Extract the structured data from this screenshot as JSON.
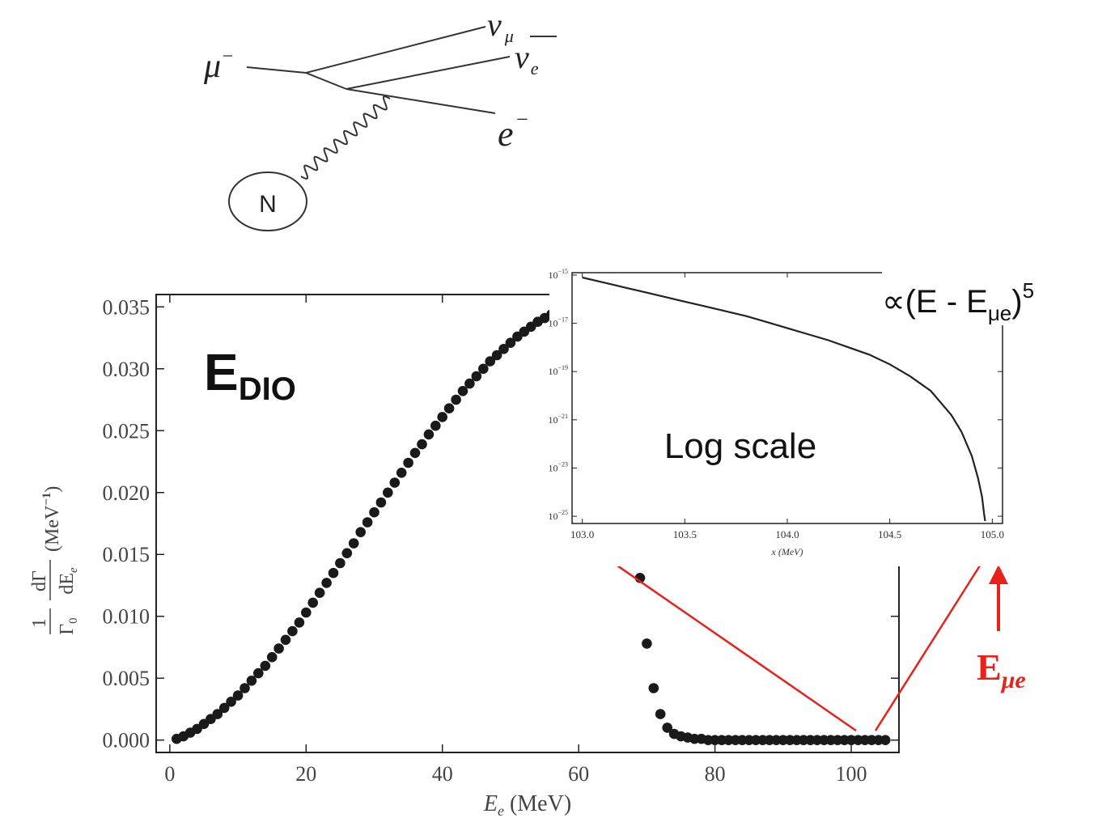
{
  "feynman": {
    "mu": "μ",
    "mu_sup": "−",
    "nu_mu": "ν",
    "nu_mu_sub": "μ",
    "nu_e": "ν",
    "nu_e_sub": "e",
    "e": "e",
    "e_sup": "−",
    "nucleus": "N"
  },
  "annotations": {
    "edio_main": "E",
    "edio_sub": "DIO",
    "log_scale": "Log scale",
    "prop_symbol": "∝",
    "prop_open": "(E - E",
    "prop_sub": "μe",
    "prop_close": ")",
    "prop_sup": "5",
    "emue_main": "E",
    "emue_sub": "μe",
    "accent_color": "#e8221a"
  },
  "chart_data": [
    {
      "type": "scatter",
      "xlabel_main": "E",
      "xlabel_sub": "e",
      "xlabel_unit": " (MeV)",
      "ylabel_fraction_num": "1",
      "ylabel_fraction_den": "Γ",
      "ylabel_fraction_den_sub": "0",
      "ylabel_d_num": "dΓ",
      "ylabel_d_den": "dE",
      "ylabel_d_den_sub": "e",
      "ylabel_unit": "(MeV",
      "ylabel_unit_sup": "−1",
      "ylabel_unit_close": ")",
      "xlim": [
        -2,
        107
      ],
      "ylim": [
        -0.001,
        0.036
      ],
      "xticks": [
        "0",
        "20",
        "40",
        "60",
        "80",
        "100"
      ],
      "xtick_values": [
        0,
        20,
        40,
        60,
        80,
        100
      ],
      "yticks": [
        "0.000",
        "0.005",
        "0.010",
        "0.015",
        "0.020",
        "0.025",
        "0.030",
        "0.035"
      ],
      "ytick_values": [
        0,
        0.005,
        0.01,
        0.015,
        0.02,
        0.025,
        0.03,
        0.035
      ],
      "marker_color": "#1a1a1a",
      "x": [
        1,
        2,
        3,
        4,
        5,
        6,
        7,
        8,
        9,
        10,
        11,
        12,
        13,
        14,
        15,
        16,
        17,
        18,
        19,
        20,
        21,
        22,
        23,
        24,
        25,
        26,
        27,
        28,
        29,
        30,
        31,
        32,
        33,
        34,
        35,
        36,
        37,
        38,
        39,
        40,
        41,
        42,
        43,
        44,
        45,
        46,
        47,
        48,
        49,
        50,
        51,
        52,
        53,
        54,
        55,
        56,
        57,
        58,
        59,
        60,
        61,
        62,
        63,
        64,
        65,
        66,
        67,
        68,
        69,
        70,
        71,
        72,
        73,
        74,
        75,
        76,
        77,
        78,
        79,
        80,
        81,
        82,
        83,
        84,
        85,
        86,
        87,
        88,
        89,
        90,
        91,
        92,
        93,
        94,
        95,
        96,
        97,
        98,
        99,
        100,
        101,
        102,
        103,
        104,
        105
      ],
      "y": [
        0.0001,
        0.0003,
        0.0006,
        0.0009,
        0.0013,
        0.0017,
        0.0021,
        0.0026,
        0.0031,
        0.0036,
        0.0042,
        0.0048,
        0.0054,
        0.006,
        0.0067,
        0.0074,
        0.0081,
        0.0088,
        0.0095,
        0.0103,
        0.0111,
        0.0119,
        0.0127,
        0.0135,
        0.0143,
        0.0151,
        0.0159,
        0.0168,
        0.0176,
        0.0184,
        0.0192,
        0.02,
        0.0208,
        0.0216,
        0.0224,
        0.0232,
        0.0239,
        0.0247,
        0.0254,
        0.0261,
        0.0268,
        0.0275,
        0.0282,
        0.0288,
        0.0294,
        0.03,
        0.0306,
        0.0311,
        0.0316,
        0.0321,
        0.0326,
        0.033,
        0.0334,
        0.0338,
        0.0341,
        0.0344,
        0.0347,
        0.0349,
        0.0351,
        0.0352,
        0.0352,
        0.0351,
        0.0348,
        0.0342,
        0.0328,
        0.0298,
        0.0254,
        0.0194,
        0.0131,
        0.0078,
        0.0042,
        0.0021,
        0.001,
        0.0005,
        0.0003,
        0.0002,
        0.0001,
        0.0001,
        0,
        0,
        0,
        0,
        0,
        0,
        0,
        0,
        0,
        0,
        0,
        0,
        0,
        0,
        0,
        0,
        0,
        0,
        0,
        0,
        0,
        0,
        0,
        0,
        0,
        0,
        0
      ]
    },
    {
      "type": "line",
      "scale_y": "log",
      "xlabel": "x (MeV)",
      "xlim": [
        102.95,
        105.05
      ],
      "ylim_exp": [
        -25.3,
        -14.9
      ],
      "xticks": [
        "103.0",
        "103.5",
        "104.0",
        "104.5",
        "105.0"
      ],
      "xtick_values": [
        103.0,
        103.5,
        104.0,
        104.5,
        105.0
      ],
      "yticks_base": "10",
      "ytick_exps": [
        "−15",
        "−17",
        "−19",
        "−21",
        "−23",
        "−25"
      ],
      "ytick_values_exp": [
        -15,
        -17,
        -19,
        -21,
        -23,
        -25
      ],
      "endpoint": 104.97,
      "x": [
        103.0,
        103.1,
        103.2,
        103.3,
        103.4,
        103.5,
        103.6,
        103.7,
        103.8,
        103.9,
        104.0,
        104.1,
        104.2,
        104.3,
        104.4,
        104.5,
        104.6,
        104.7,
        104.8,
        104.85,
        104.9,
        104.93,
        104.95,
        104.96,
        104.965
      ],
      "y_log10": [
        -15.1,
        -15.3,
        -15.5,
        -15.7,
        -15.9,
        -16.1,
        -16.3,
        -16.5,
        -16.7,
        -16.95,
        -17.2,
        -17.45,
        -17.7,
        -18.0,
        -18.3,
        -18.7,
        -19.2,
        -19.8,
        -20.8,
        -21.5,
        -22.5,
        -23.4,
        -24.2,
        -24.9,
        -25.2
      ],
      "line_color": "#222222"
    }
  ]
}
